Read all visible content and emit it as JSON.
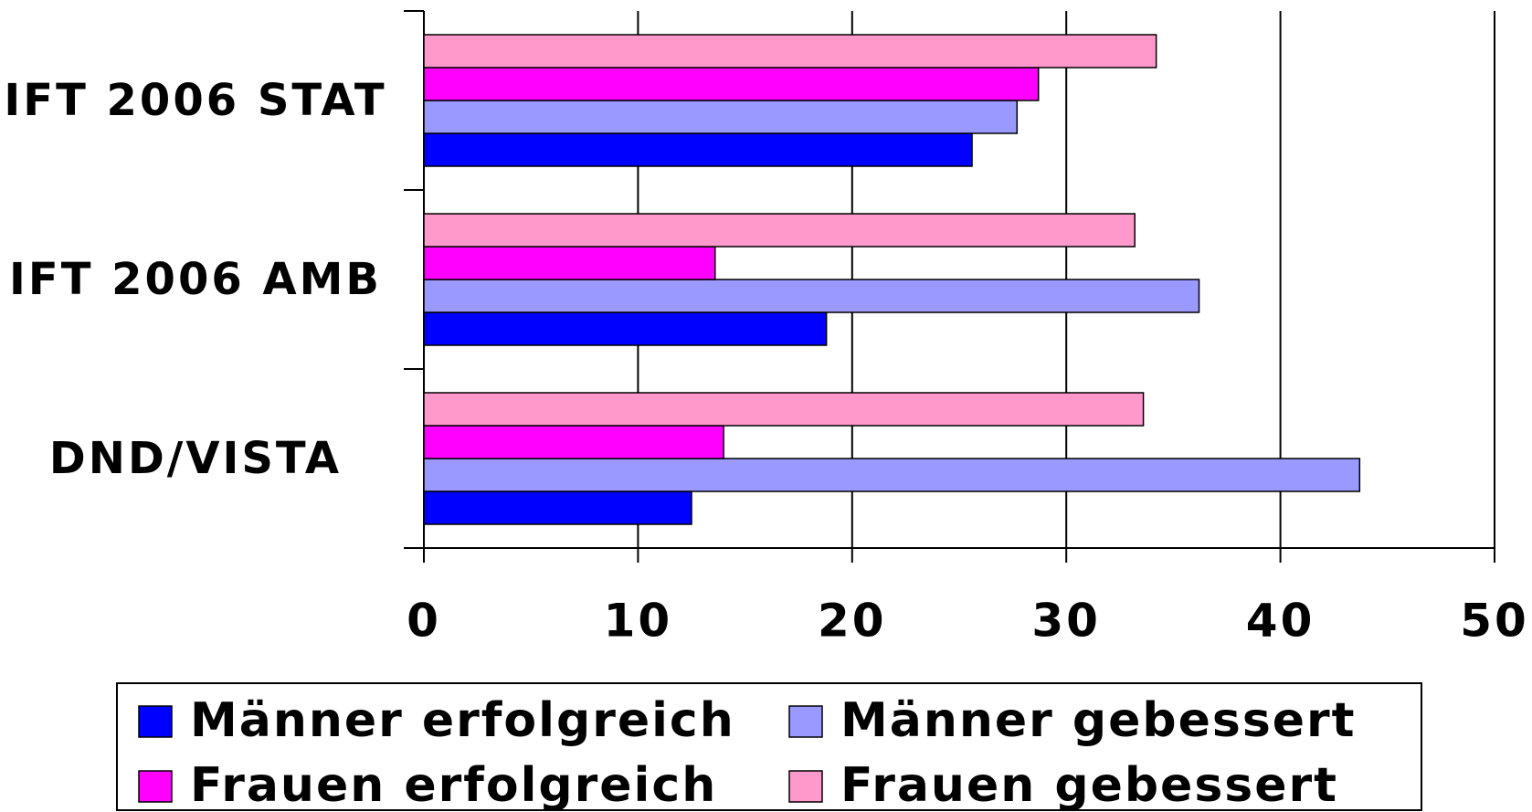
{
  "chart_data": {
    "type": "hbar",
    "categories": [
      "IFT 2006 STAT",
      "IFT 2006 AMB",
      "DND/VISTA"
    ],
    "series": [
      {
        "name": "Männer erfolgreich",
        "color": "#0000ff",
        "values": [
          25.6,
          18.8,
          12.5
        ]
      },
      {
        "name": "Männer gebessert",
        "color": "#9999ff",
        "values": [
          27.7,
          36.2,
          43.7
        ]
      },
      {
        "name": "Frauen erfolgreich",
        "color": "#ff00ff",
        "values": [
          28.7,
          13.6,
          14.0
        ]
      },
      {
        "name": "Frauen gebessert",
        "color": "#ff99cc",
        "values": [
          34.2,
          33.2,
          33.6
        ]
      }
    ],
    "xlim": [
      0,
      50
    ],
    "xticks": [
      0,
      10,
      20,
      30,
      40,
      50
    ],
    "grid": true
  }
}
